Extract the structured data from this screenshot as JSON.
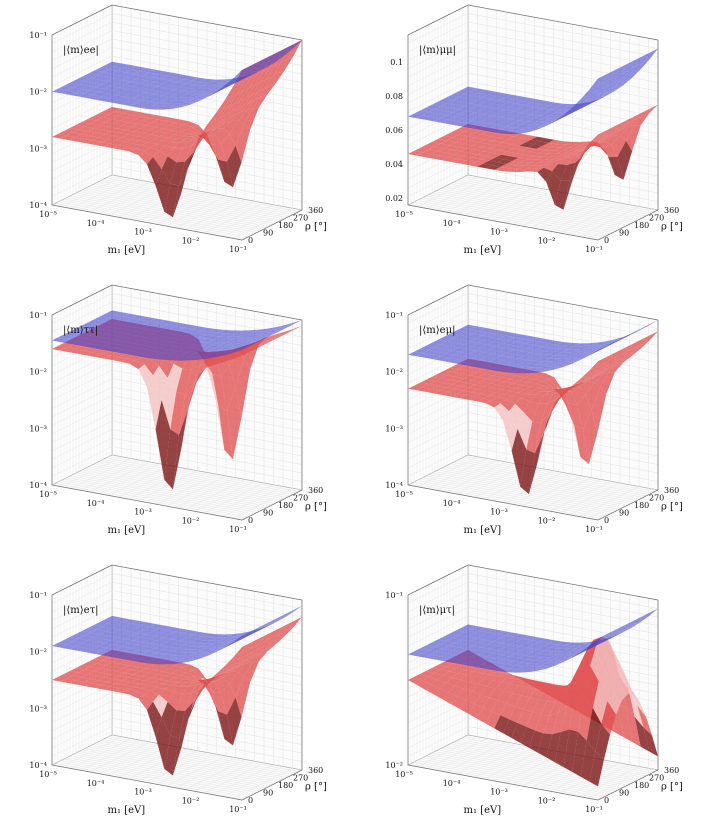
{
  "chart_data": [
    {
      "type": "surface3d",
      "zlabel": "|⟨m⟩ee|",
      "zscale": "log",
      "zticks": [
        "10⁻⁴",
        "10⁻³",
        "10⁻²",
        "10⁻¹"
      ],
      "xlabel": "m₁",
      "xunit": "[eV]",
      "xscale": "log",
      "xticks": [
        "10⁻⁵",
        "10⁻⁴",
        "10⁻³",
        "10⁻²",
        "10⁻¹"
      ],
      "ylabel": "ρ",
      "yunit": "[°]",
      "yticks": [
        "0",
        "90",
        "180",
        "270",
        "360"
      ],
      "series": [
        {
          "color": "#4444cc",
          "shape": "plane-rise",
          "zstart": -2.0,
          "zend": -1.0
        },
        {
          "color": "#e05050",
          "shape": "dip-rise",
          "zstart": -2.8,
          "zend": -1.0,
          "dipdepth": -4.0
        }
      ]
    },
    {
      "type": "surface3d",
      "zlabel": "|⟨m⟩μμ|",
      "zscale": "log",
      "zticks": [
        "0.02",
        "0.04",
        "0.06",
        "0.08",
        "0.1"
      ],
      "xlabel": "m₁",
      "xunit": "[eV]",
      "xscale": "log",
      "xticks": [
        "10⁻⁵",
        "10⁻⁴",
        "10⁻³",
        "10⁻²",
        "10⁻¹"
      ],
      "ylabel": "ρ",
      "yunit": "[°]",
      "yticks": [
        "0",
        "90",
        "180",
        "270",
        "360"
      ],
      "series": [
        {
          "color": "#4444cc",
          "shape": "plane-rise",
          "zstart": 0.52,
          "zend": 0.95
        },
        {
          "color": "#e05050",
          "shape": "shallow-dip",
          "zstart": 0.3,
          "zend": 0.62,
          "dipdepth": 0.12
        }
      ]
    },
    {
      "type": "surface3d",
      "zlabel": "|⟨m⟩ττ|",
      "zscale": "log",
      "zticks": [
        "10⁻⁴",
        "10⁻³",
        "10⁻²",
        "10⁻¹"
      ],
      "xlabel": "m₁",
      "xunit": "[eV]",
      "xscale": "log",
      "xticks": [
        "10⁻⁵",
        "10⁻⁴",
        "10⁻³",
        "10⁻²",
        "10⁻¹"
      ],
      "ylabel": "ρ",
      "yunit": "[°]",
      "yticks": [
        "0",
        "90",
        "180",
        "270",
        "360"
      ],
      "series": [
        {
          "color": "#4444cc",
          "shape": "plane-rise",
          "zstart": -1.45,
          "zend": -1.0
        },
        {
          "color": "#e05050",
          "shape": "deep-dip",
          "zstart": -1.6,
          "zend": -1.1,
          "dipdepth": -4.0
        }
      ]
    },
    {
      "type": "surface3d",
      "zlabel": "|⟨m⟩eμ|",
      "zscale": "log",
      "zticks": [
        "10⁻⁴",
        "10⁻³",
        "10⁻²",
        "10⁻¹"
      ],
      "xlabel": "m₁",
      "xunit": "[eV]",
      "xscale": "log",
      "xticks": [
        "10⁻⁵",
        "10⁻⁴",
        "10⁻³",
        "10⁻²",
        "10⁻¹"
      ],
      "ylabel": "ρ",
      "yunit": "[°]",
      "yticks": [
        "0",
        "90",
        "180",
        "270",
        "360"
      ],
      "series": [
        {
          "color": "#4444cc",
          "shape": "plane-rise",
          "zstart": -1.7,
          "zend": -1.0
        },
        {
          "color": "#e05050",
          "shape": "deep-dip",
          "zstart": -2.3,
          "zend": -1.2,
          "dipdepth": -4.0
        }
      ]
    },
    {
      "type": "surface3d",
      "zlabel": "|⟨m⟩eτ|",
      "zscale": "log",
      "zticks": [
        "10⁻⁴",
        "10⁻³",
        "10⁻²",
        "10⁻¹"
      ],
      "xlabel": "m₁",
      "xunit": "[eV]",
      "xscale": "log",
      "xticks": [
        "10⁻⁵",
        "10⁻⁴",
        "10⁻³",
        "10⁻²",
        "10⁻¹"
      ],
      "ylabel": "ρ",
      "yunit": "[°]",
      "yticks": [
        "0",
        "90",
        "180",
        "270",
        "360"
      ],
      "series": [
        {
          "color": "#4444cc",
          "shape": "plane-rise",
          "zstart": -1.9,
          "zend": -1.1
        },
        {
          "color": "#e05050",
          "shape": "deep-dip",
          "zstart": -2.5,
          "zend": -1.3,
          "dipdepth": -4.0
        }
      ]
    },
    {
      "type": "surface3d",
      "zlabel": "|⟨m⟩μτ|",
      "zscale": "log",
      "zticks": [
        "10⁻²",
        "10⁻¹"
      ],
      "xlabel": "m₁",
      "xunit": "[eV]",
      "xscale": "log",
      "xticks": [
        "10⁻⁵",
        "10⁻⁴",
        "10⁻³",
        "10⁻²",
        "10⁻¹"
      ],
      "ylabel": "ρ",
      "yunit": "[°]",
      "yticks": [
        "0",
        "90",
        "180",
        "270",
        "360"
      ],
      "series": [
        {
          "color": "#4444cc",
          "shape": "plane-rise",
          "zstart": -1.35,
          "zend": -1.05
        },
        {
          "color": "#e05050",
          "shape": "hump",
          "zstart": -1.5,
          "zend": -1.65,
          "dipdepth": -2.2
        }
      ]
    }
  ]
}
